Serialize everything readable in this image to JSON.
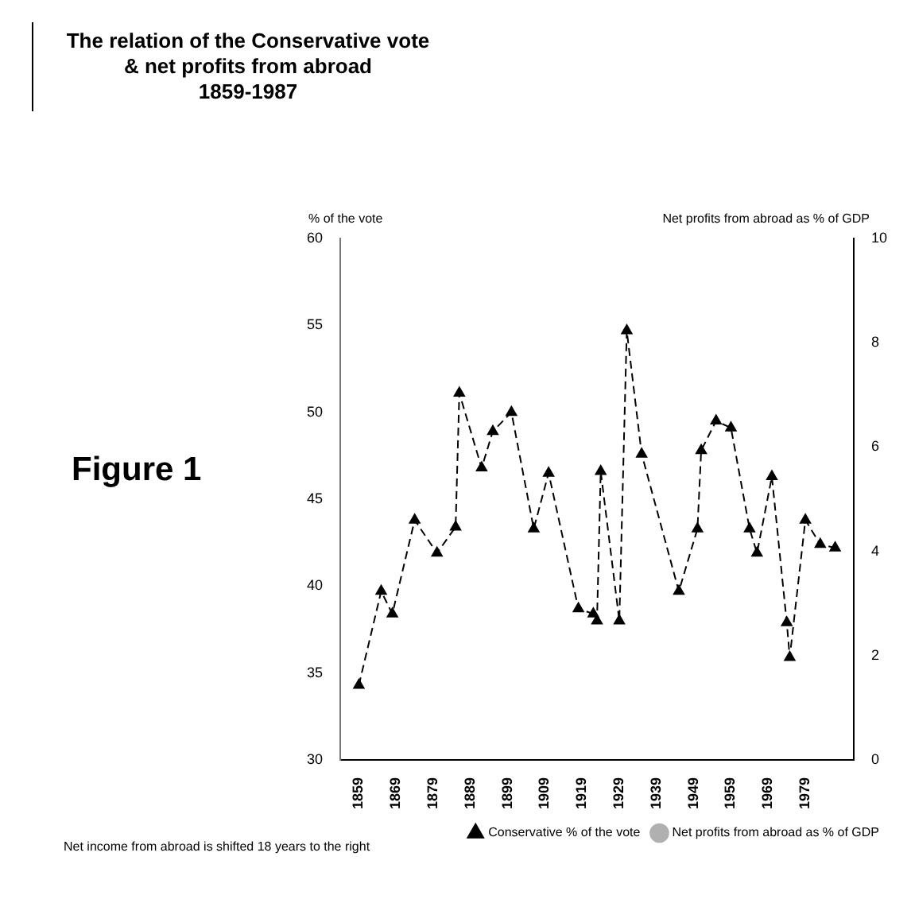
{
  "chart_data": {
    "type": "line",
    "title": "The relation of the Conservative vote\n& net profits from abroad\n1859-1987",
    "ylabel": "% of the vote",
    "y2label": "Net profits from abroad as % of GDP",
    "annotations": [
      "Figure 1",
      "Net income from abroad is shifted 18 years to the right"
    ],
    "x": [
      1859,
      1865,
      1868,
      1874,
      1880,
      1885,
      1886,
      1892,
      1895,
      1900,
      1906,
      1910,
      1918,
      1922,
      1923,
      1924,
      1929,
      1931,
      1935,
      1945,
      1950,
      1951,
      1955,
      1959,
      1964,
      1966,
      1970,
      1974,
      1974.8,
      1979,
      1983,
      1987
    ],
    "series": [
      {
        "name": "Conservative % of the vote",
        "color": "#000000",
        "line_style": "dashed",
        "marker": "triangle",
        "values": [
          34.3,
          39.7,
          38.4,
          43.8,
          41.9,
          43.4,
          51.1,
          46.8,
          48.9,
          50.0,
          43.3,
          46.5,
          38.7,
          38.4,
          38.0,
          46.6,
          38.0,
          54.7,
          47.6,
          39.7,
          43.3,
          47.8,
          49.5,
          49.1,
          43.3,
          41.9,
          46.3,
          37.9,
          35.9,
          43.8,
          42.4,
          42.2
        ]
      },
      {
        "name": "Net profits from abroad as % of GDP",
        "color": "#b0b0b0",
        "line_style": "dotted",
        "marker": "none",
        "values": [
          null,
          null,
          null,
          null,
          null,
          null,
          null,
          null,
          null,
          null,
          null,
          null,
          null,
          null,
          null,
          null,
          null,
          null,
          null,
          null,
          null,
          null,
          null,
          null,
          null,
          null,
          null,
          null,
          null,
          null,
          null,
          null
        ]
      }
    ],
    "xlim": [
      1854,
      1992
    ],
    "xticks": [
      1859,
      1869,
      1879,
      1889,
      1899,
      1909,
      1919,
      1929,
      1939,
      1949,
      1959,
      1969,
      1979
    ],
    "ylim": [
      30,
      60
    ],
    "yticks": [
      30,
      35,
      40,
      45,
      50,
      55,
      60
    ],
    "y2lim": [
      0,
      10
    ],
    "y2ticks": [
      0,
      2,
      4,
      6,
      8,
      10
    ],
    "grid": false,
    "legend": "bottom"
  }
}
